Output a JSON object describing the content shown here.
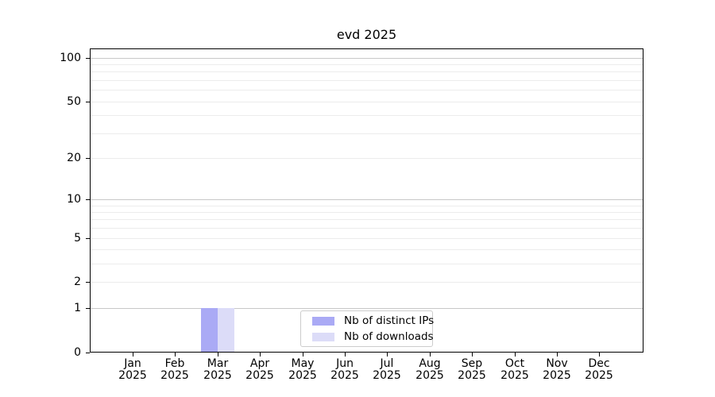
{
  "chart_data": {
    "type": "bar",
    "title": "evd 2025",
    "categories": [
      "Jan\n2025",
      "Feb\n2025",
      "Mar\n2025",
      "Apr\n2025",
      "May\n2025",
      "Jun\n2025",
      "Jul\n2025",
      "Aug\n2025",
      "Sep\n2025",
      "Oct\n2025",
      "Nov\n2025",
      "Dec\n2025"
    ],
    "series": [
      {
        "name": "Nb of distinct IPs",
        "color": "#aaaaf5",
        "values": [
          0,
          0,
          1,
          0,
          0,
          0,
          0,
          0,
          0,
          0,
          0,
          0
        ]
      },
      {
        "name": "Nb of downloads",
        "color": "#dcdcf8",
        "values": [
          0,
          0,
          1,
          0,
          0,
          0,
          0,
          0,
          0,
          0,
          0,
          0
        ]
      }
    ],
    "xlabel": "",
    "ylabel": "",
    "yscale": "log1p",
    "ylim": [
      0,
      115
    ],
    "yticks": [
      0,
      1,
      2,
      5,
      10,
      20,
      50,
      100
    ],
    "major_gridlines": [
      1,
      10,
      100
    ],
    "minor_gridlines": [
      2,
      3,
      4,
      5,
      6,
      7,
      8,
      9,
      20,
      30,
      40,
      50,
      60,
      70,
      80,
      90
    ],
    "grid": true,
    "legend_position": "bottom-center",
    "colors": {
      "axis": "#000000",
      "major_grid": "#c8c8c8",
      "minor_grid": "#ececec",
      "legend_border": "#cccccc",
      "background": "#ffffff",
      "text": "#000000"
    }
  }
}
